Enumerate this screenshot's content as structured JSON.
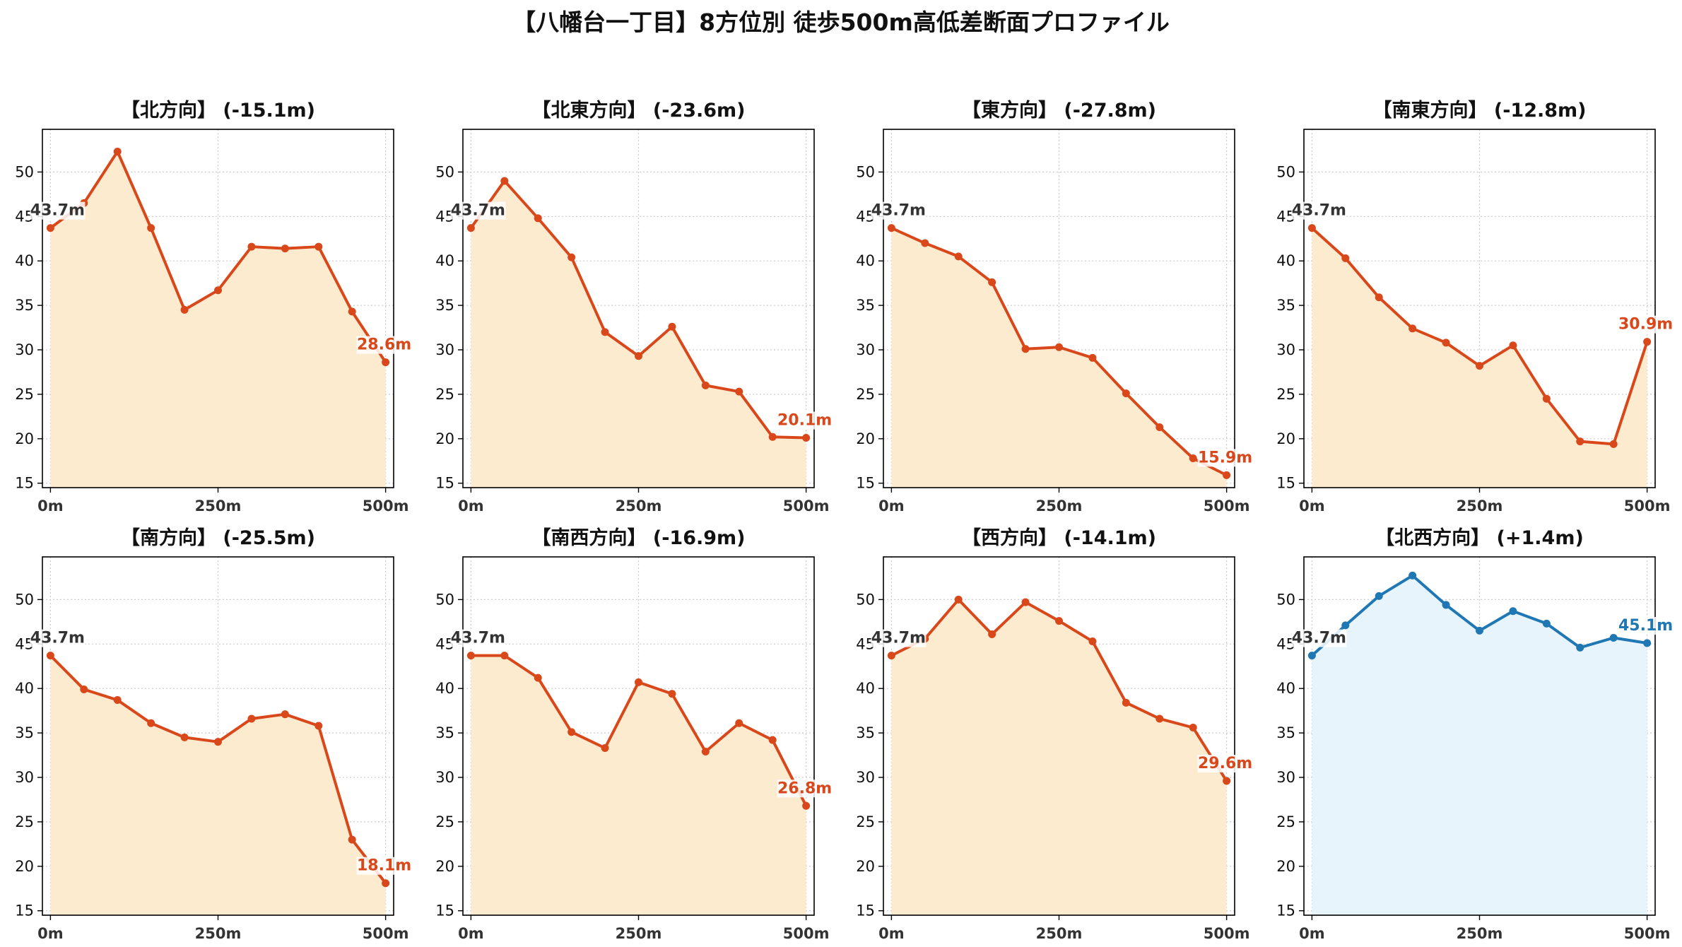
{
  "title": "【八幡台一丁目】8方位別 徒歩500m高低差断面プロファイル",
  "colors": {
    "down_line": "#d9481a",
    "down_fill": "#fdebd0",
    "up_line": "#1f77b4",
    "up_fill": "#e8f4fb",
    "start_label": "#333333",
    "grid": "#cccccc"
  },
  "chart_data": [
    {
      "type": "area",
      "title": "【北方向】 (-15.1m)",
      "trend": "down",
      "x": [
        0,
        50,
        100,
        150,
        200,
        250,
        300,
        350,
        400,
        450,
        500
      ],
      "y": [
        43.7,
        46.5,
        52.3,
        43.7,
        34.5,
        36.7,
        41.6,
        41.4,
        41.6,
        34.3,
        28.6
      ],
      "xticks": [
        "0m",
        "250m",
        "500m"
      ],
      "yticks": [
        15,
        20,
        25,
        30,
        35,
        40,
        45,
        50
      ],
      "ylim": [
        14.5,
        54.8
      ],
      "xlim": [
        -12,
        512
      ],
      "start_label": "43.7m",
      "end_label": "28.6m",
      "grid": true
    },
    {
      "type": "area",
      "title": "【北東方向】 (-23.6m)",
      "trend": "down",
      "x": [
        0,
        50,
        100,
        150,
        200,
        250,
        300,
        350,
        400,
        450,
        500
      ],
      "y": [
        43.7,
        49.0,
        44.8,
        40.4,
        32.0,
        29.3,
        32.6,
        26.0,
        25.3,
        20.2,
        20.1
      ],
      "xticks": [
        "0m",
        "250m",
        "500m"
      ],
      "yticks": [
        15,
        20,
        25,
        30,
        35,
        40,
        45,
        50
      ],
      "ylim": [
        14.5,
        54.8
      ],
      "xlim": [
        -12,
        512
      ],
      "start_label": "43.7m",
      "end_label": "20.1m",
      "grid": true
    },
    {
      "type": "area",
      "title": "【東方向】 (-27.8m)",
      "trend": "down",
      "x": [
        0,
        50,
        100,
        150,
        200,
        250,
        300,
        350,
        400,
        450,
        500
      ],
      "y": [
        43.7,
        42.0,
        40.5,
        37.6,
        30.1,
        30.3,
        29.1,
        25.1,
        21.3,
        17.8,
        15.9
      ],
      "xticks": [
        "0m",
        "250m",
        "500m"
      ],
      "yticks": [
        15,
        20,
        25,
        30,
        35,
        40,
        45,
        50
      ],
      "ylim": [
        14.5,
        54.8
      ],
      "xlim": [
        -12,
        512
      ],
      "start_label": "43.7m",
      "end_label": "15.9m",
      "grid": true
    },
    {
      "type": "area",
      "title": "【南東方向】 (-12.8m)",
      "trend": "down",
      "x": [
        0,
        50,
        100,
        150,
        200,
        250,
        300,
        350,
        400,
        450,
        500
      ],
      "y": [
        43.7,
        40.3,
        35.9,
        32.4,
        30.8,
        28.2,
        30.5,
        24.5,
        19.7,
        19.4,
        30.9
      ],
      "xticks": [
        "0m",
        "250m",
        "500m"
      ],
      "yticks": [
        15,
        20,
        25,
        30,
        35,
        40,
        45,
        50
      ],
      "ylim": [
        14.5,
        54.8
      ],
      "xlim": [
        -12,
        512
      ],
      "start_label": "43.7m",
      "end_label": "30.9m",
      "grid": true
    },
    {
      "type": "area",
      "title": "【南方向】 (-25.5m)",
      "trend": "down",
      "x": [
        0,
        50,
        100,
        150,
        200,
        250,
        300,
        350,
        400,
        450,
        500
      ],
      "y": [
        43.7,
        39.9,
        38.7,
        36.1,
        34.5,
        34.0,
        36.6,
        37.1,
        35.8,
        23.0,
        18.1
      ],
      "xticks": [
        "0m",
        "250m",
        "500m"
      ],
      "yticks": [
        15,
        20,
        25,
        30,
        35,
        40,
        45,
        50
      ],
      "ylim": [
        14.5,
        54.8
      ],
      "xlim": [
        -12,
        512
      ],
      "start_label": "43.7m",
      "end_label": "18.1m",
      "grid": true
    },
    {
      "type": "area",
      "title": "【南西方向】 (-16.9m)",
      "trend": "down",
      "x": [
        0,
        50,
        100,
        150,
        200,
        250,
        300,
        350,
        400,
        450,
        500
      ],
      "y": [
        43.7,
        43.7,
        41.2,
        35.1,
        33.3,
        40.7,
        39.4,
        32.9,
        36.1,
        34.2,
        26.8
      ],
      "xticks": [
        "0m",
        "250m",
        "500m"
      ],
      "yticks": [
        15,
        20,
        25,
        30,
        35,
        40,
        45,
        50
      ],
      "ylim": [
        14.5,
        54.8
      ],
      "xlim": [
        -12,
        512
      ],
      "start_label": "43.7m",
      "end_label": "26.8m",
      "grid": true
    },
    {
      "type": "area",
      "title": "【西方向】 (-14.1m)",
      "trend": "down",
      "x": [
        0,
        50,
        100,
        150,
        200,
        250,
        300,
        350,
        400,
        450,
        500
      ],
      "y": [
        43.7,
        45.6,
        50.0,
        46.1,
        49.7,
        47.6,
        45.3,
        38.4,
        36.6,
        35.6,
        29.6
      ],
      "xticks": [
        "0m",
        "250m",
        "500m"
      ],
      "yticks": [
        15,
        20,
        25,
        30,
        35,
        40,
        45,
        50
      ],
      "ylim": [
        14.5,
        54.8
      ],
      "xlim": [
        -12,
        512
      ],
      "start_label": "43.7m",
      "end_label": "29.6m",
      "grid": true
    },
    {
      "type": "area",
      "title": "【北西方向】 (+1.4m)",
      "trend": "up",
      "x": [
        0,
        50,
        100,
        150,
        200,
        250,
        300,
        350,
        400,
        450,
        500
      ],
      "y": [
        43.7,
        47.1,
        50.4,
        52.7,
        49.4,
        46.5,
        48.7,
        47.3,
        44.6,
        45.7,
        45.1
      ],
      "xticks": [
        "0m",
        "250m",
        "500m"
      ],
      "yticks": [
        15,
        20,
        25,
        30,
        35,
        40,
        45,
        50
      ],
      "ylim": [
        14.5,
        54.8
      ],
      "xlim": [
        -12,
        512
      ],
      "start_label": "43.7m",
      "end_label": "45.1m",
      "grid": true
    }
  ]
}
